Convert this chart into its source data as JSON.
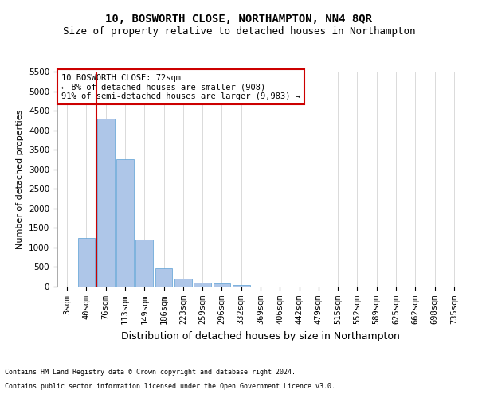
{
  "title": "10, BOSWORTH CLOSE, NORTHAMPTON, NN4 8QR",
  "subtitle": "Size of property relative to detached houses in Northampton",
  "xlabel": "Distribution of detached houses by size in Northampton",
  "ylabel": "Number of detached properties",
  "footnote1": "Contains HM Land Registry data © Crown copyright and database right 2024.",
  "footnote2": "Contains public sector information licensed under the Open Government Licence v3.0.",
  "annotation_title": "10 BOSWORTH CLOSE: 72sqm",
  "annotation_line2": "← 8% of detached houses are smaller (908)",
  "annotation_line3": "91% of semi-detached houses are larger (9,983) →",
  "bar_color": "#aec6e8",
  "bar_edge_color": "#5a9fd4",
  "ref_line_color": "#cc0000",
  "ref_line_x": 1.5,
  "grid_color": "#cccccc",
  "categories": [
    "3sqm",
    "40sqm",
    "76sqm",
    "113sqm",
    "149sqm",
    "186sqm",
    "223sqm",
    "259sqm",
    "296sqm",
    "332sqm",
    "369sqm",
    "406sqm",
    "442sqm",
    "479sqm",
    "515sqm",
    "552sqm",
    "589sqm",
    "625sqm",
    "662sqm",
    "698sqm",
    "735sqm"
  ],
  "values": [
    0,
    1250,
    4300,
    3250,
    1200,
    475,
    200,
    100,
    75,
    50,
    0,
    0,
    0,
    0,
    0,
    0,
    0,
    0,
    0,
    0,
    0
  ],
  "ylim": [
    0,
    5500
  ],
  "yticks": [
    0,
    500,
    1000,
    1500,
    2000,
    2500,
    3000,
    3500,
    4000,
    4500,
    5000,
    5500
  ],
  "title_fontsize": 10,
  "subtitle_fontsize": 9,
  "ylabel_fontsize": 8,
  "xlabel_fontsize": 9,
  "tick_fontsize": 7.5,
  "annotation_fontsize": 7.5,
  "footnote_fontsize": 6,
  "annotation_box_color": "white",
  "annotation_box_edgecolor": "#cc0000",
  "background_color": "white"
}
